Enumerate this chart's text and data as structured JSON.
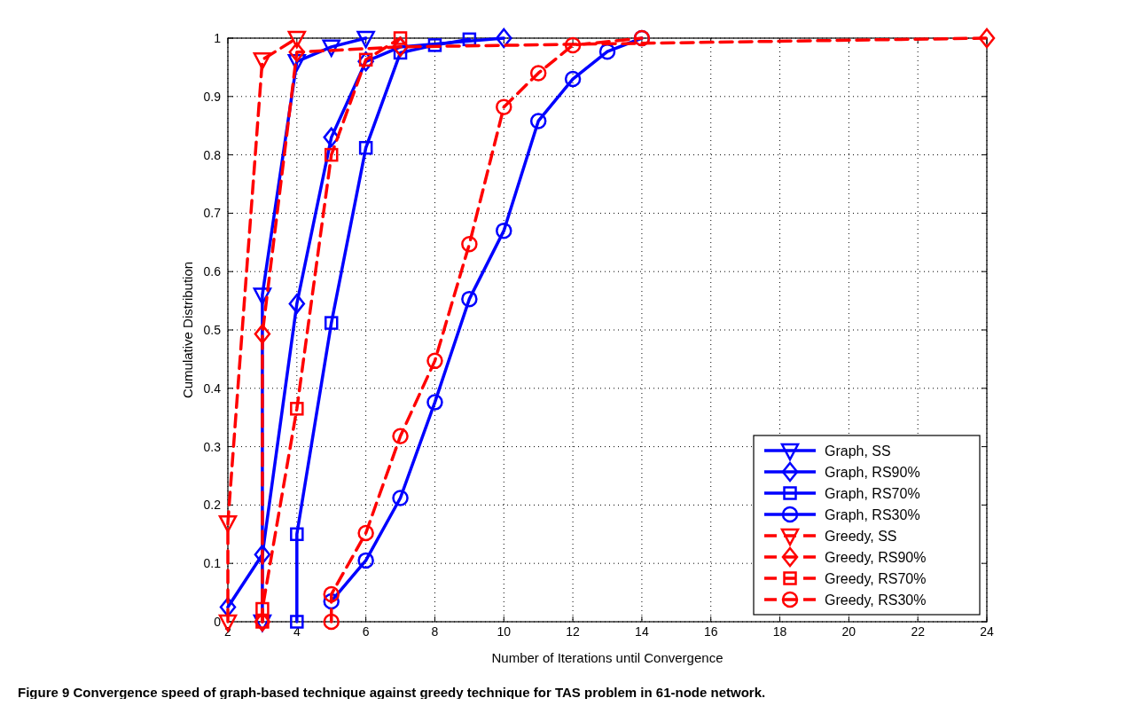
{
  "chart_data": {
    "type": "line",
    "xlabel": "Number of Iterations until Convergence",
    "ylabel": "Cumulative Distribution",
    "xlim": [
      2,
      24
    ],
    "xticks": [
      2,
      4,
      6,
      8,
      10,
      12,
      14,
      16,
      18,
      20,
      22,
      24
    ],
    "ylim": [
      0,
      1
    ],
    "yticks": [
      0,
      0.1,
      0.2,
      0.3,
      0.4,
      0.5,
      0.6,
      0.7,
      0.8,
      0.9,
      1
    ],
    "grid": true,
    "legend": "bottom right",
    "annotations": [
      "Figure 9 Convergence speed of graph-based technique against greedy technique for TAS problem in 61-node network."
    ],
    "series": [
      {
        "name": "Graph, SS",
        "color": "#0000ff",
        "marker": "triangle",
        "line_style": "solid",
        "x": [
          3,
          3,
          4,
          5,
          6
        ],
        "values": [
          0,
          0.56,
          0.96,
          0.985,
          1
        ]
      },
      {
        "name": "Graph, RS90%",
        "color": "#0000ff",
        "marker": "diamond",
        "line_style": "solid",
        "x": [
          2,
          3,
          4,
          5,
          6,
          7,
          10
        ],
        "values": [
          0.025,
          0.115,
          0.545,
          0.83,
          0.96,
          0.985,
          1
        ]
      },
      {
        "name": "Graph, RS70%",
        "color": "#0000ff",
        "marker": "square",
        "line_style": "solid",
        "x": [
          4,
          4,
          5,
          6,
          7,
          8,
          9
        ],
        "values": [
          0,
          0.15,
          0.512,
          0.812,
          0.975,
          0.988,
          0.998
        ]
      },
      {
        "name": "Graph, RS30%",
        "color": "#0000ff",
        "marker": "circle",
        "line_style": "solid",
        "x": [
          5,
          6,
          7,
          8,
          9,
          10,
          11,
          12,
          13,
          14
        ],
        "values": [
          0.035,
          0.105,
          0.212,
          0.376,
          0.553,
          0.67,
          0.858,
          0.93,
          0.977,
          1
        ]
      },
      {
        "name": "Greedy, SS",
        "color": "#ff0000",
        "marker": "triangle",
        "line_style": "dashed",
        "x": [
          2,
          2,
          3,
          4
        ],
        "values": [
          0,
          0.17,
          0.963,
          1
        ]
      },
      {
        "name": "Greedy, RS90%",
        "color": "#ff0000",
        "marker": "diamond",
        "line_style": "dashed",
        "x": [
          3,
          3,
          4,
          7,
          24
        ],
        "values": [
          0,
          0.493,
          0.976,
          0.985,
          1
        ]
      },
      {
        "name": "Greedy, RS70%",
        "color": "#ff0000",
        "marker": "square",
        "line_style": "dashed",
        "x": [
          3,
          3,
          4,
          5,
          6,
          7
        ],
        "values": [
          0,
          0.022,
          0.365,
          0.8,
          0.963,
          1
        ]
      },
      {
        "name": "Greedy, RS30%",
        "color": "#ff0000",
        "marker": "circle",
        "line_style": "dashed",
        "x": [
          5,
          5,
          6,
          7,
          8,
          9,
          10,
          11,
          12,
          14
        ],
        "values": [
          0,
          0.047,
          0.152,
          0.318,
          0.447,
          0.647,
          0.882,
          0.94,
          0.988,
          1
        ]
      }
    ]
  }
}
